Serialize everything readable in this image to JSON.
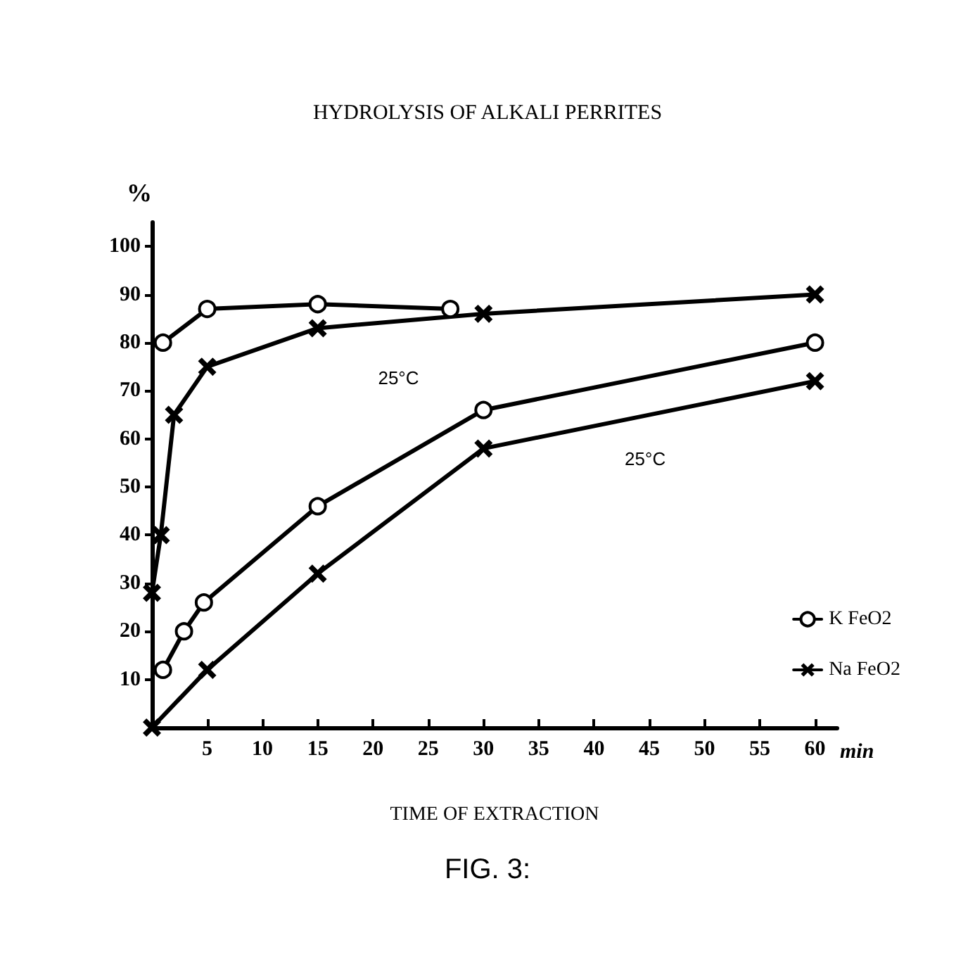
{
  "chart_data": {
    "type": "line",
    "title": "HYDROLYSIS OF ALKALI PERRITES",
    "xlabel": "TIME OF EXTRACTION",
    "ylabel": "%",
    "xlim": [
      0,
      62
    ],
    "xticks": [
      5,
      10,
      15,
      20,
      25,
      30,
      35,
      40,
      45,
      50,
      55,
      60
    ],
    "ylim": [
      0,
      105
    ],
    "yticks": [
      10,
      20,
      30,
      40,
      50,
      60,
      70,
      80,
      90,
      100
    ],
    "grid": false,
    "legend": "right",
    "line_style": "solid",
    "series": [
      {
        "name": "K FeO2",
        "color": "#000000",
        "marker": "circle",
        "x": [
          1,
          5,
          15,
          27
        ],
        "values": [
          80,
          87,
          88,
          87
        ]
      },
      {
        "name": "Na FeO2",
        "color": "#000000",
        "marker": "cross",
        "x": [
          0,
          0.8,
          2,
          5,
          15,
          30,
          60
        ],
        "values": [
          28,
          40,
          65,
          75,
          83,
          86,
          90
        ]
      },
      {
        "color": "#000000",
        "marker": "circle",
        "x": [
          1,
          2.9,
          4.7,
          15,
          30,
          60
        ],
        "values": [
          12,
          20,
          26,
          46,
          66,
          80
        ]
      },
      {
        "color": "#000000",
        "marker": "cross",
        "x": [
          0,
          5,
          15,
          30,
          60
        ],
        "values": [
          0,
          12,
          32,
          58,
          72
        ]
      }
    ],
    "annotations": [
      "25°C",
      "25°C",
      "min",
      "FIG. 3:"
    ]
  }
}
